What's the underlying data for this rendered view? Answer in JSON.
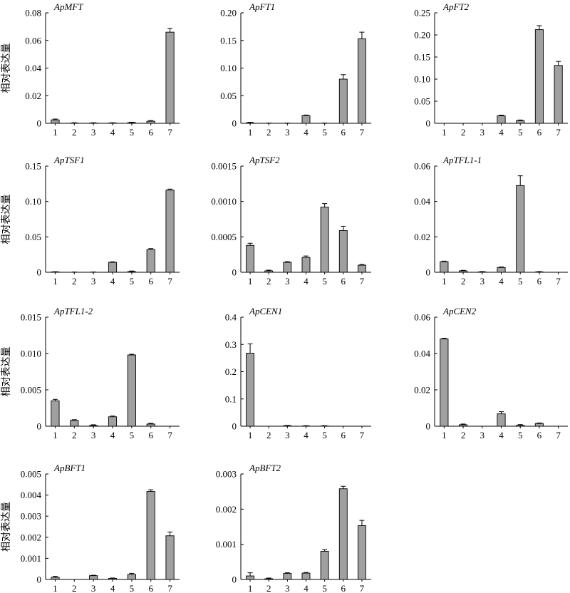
{
  "figure": {
    "ylabel": "相对表达量",
    "bar_color": "#a0a0a0",
    "axis_color": "#000000"
  },
  "chart_data": [
    {
      "type": "bar",
      "title": "ApMFT",
      "ylabel": "相对表达量",
      "categories": [
        "1",
        "2",
        "3",
        "4",
        "5",
        "6",
        "7"
      ],
      "ylim": [
        0,
        0.08
      ],
      "yticks": [
        "0",
        "0.02",
        "0.04",
        "0.06",
        "0.08"
      ],
      "values": [
        0.0025,
        0.0002,
        0.0002,
        0.0002,
        0.0005,
        0.0015,
        0.066
      ],
      "errors": [
        0.0006,
        0.0002,
        0.0002,
        0.0002,
        0.0003,
        0.0005,
        0.0028
      ]
    },
    {
      "type": "bar",
      "title": "ApFT1",
      "ylabel": "",
      "categories": [
        "1",
        "2",
        "3",
        "4",
        "5",
        "6",
        "7"
      ],
      "ylim": [
        0,
        0.2
      ],
      "yticks": [
        "0",
        "0.05",
        "0.10",
        "0.15",
        "0.20"
      ],
      "values": [
        0.001,
        0.0003,
        0.0003,
        0.014,
        0.0003,
        0.08,
        0.153
      ],
      "errors": [
        0.0008,
        0.0002,
        0.0002,
        0.001,
        0.0002,
        0.008,
        0.012
      ]
    },
    {
      "type": "bar",
      "title": "ApFT2",
      "ylabel": "",
      "categories": [
        "1",
        "2",
        "3",
        "4",
        "5",
        "6",
        "7"
      ],
      "ylim": [
        0,
        0.25
      ],
      "yticks": [
        "0",
        "0.05",
        "0.10",
        "0.15",
        "0.20",
        "0.25"
      ],
      "values": [
        0,
        0,
        0,
        0.017,
        0.006,
        0.212,
        0.131
      ],
      "errors": [
        0,
        0,
        0,
        0.0015,
        0.0015,
        0.009,
        0.009
      ]
    },
    {
      "type": "bar",
      "title": "ApTSF1",
      "ylabel": "相对表达量",
      "categories": [
        "1",
        "2",
        "3",
        "4",
        "5",
        "6",
        "7"
      ],
      "ylim": [
        0,
        0.15
      ],
      "yticks": [
        "0",
        "0.05",
        "0.10",
        "0.15"
      ],
      "values": [
        0.0005,
        0.0002,
        0.0002,
        0.014,
        0.001,
        0.032,
        0.116
      ],
      "errors": [
        0.0003,
        0.0002,
        0.0002,
        0.0008,
        0.0008,
        0.0015,
        0.0015
      ]
    },
    {
      "type": "bar",
      "title": "ApTSF2",
      "ylabel": "",
      "categories": [
        "1",
        "2",
        "3",
        "4",
        "5",
        "6",
        "7"
      ],
      "ylim": [
        0,
        0.0015
      ],
      "yticks": [
        "0",
        "0.0005",
        "0.0010",
        "0.0015"
      ],
      "values": [
        0.00038,
        2e-05,
        0.00014,
        0.00021,
        0.00092,
        0.00059,
        0.0001
      ],
      "errors": [
        3e-05,
        1e-05,
        1e-05,
        2e-05,
        5e-05,
        6e-05,
        1e-05
      ]
    },
    {
      "type": "bar",
      "title": "ApTFL1-1",
      "ylabel": "",
      "categories": [
        "1",
        "2",
        "3",
        "4",
        "5",
        "6",
        "7"
      ],
      "ylim": [
        0,
        0.06
      ],
      "yticks": [
        "0",
        "0.02",
        "0.04",
        "0.06"
      ],
      "values": [
        0.006,
        0.0008,
        0.0002,
        0.0027,
        0.049,
        0.0002,
        0
      ],
      "errors": [
        0.0003,
        0.0003,
        0.0002,
        0.0003,
        0.0055,
        0.0002,
        0
      ]
    },
    {
      "type": "bar",
      "title": "ApTFL1-2",
      "ylabel": "相对表达量",
      "categories": [
        "1",
        "2",
        "3",
        "4",
        "5",
        "6",
        "7"
      ],
      "ylim": [
        0,
        0.015
      ],
      "yticks": [
        "0",
        "0.005",
        "0.010",
        "0.015"
      ],
      "values": [
        0.0035,
        0.0008,
        0.0001,
        0.0013,
        0.0098,
        0.0003,
        0
      ],
      "errors": [
        0.0002,
        0.0001,
        0.0001,
        0.0001,
        0.0001,
        0.0001,
        0
      ]
    },
    {
      "type": "bar",
      "title": "ApCEN1",
      "ylabel": "",
      "categories": [
        "1",
        "2",
        "3",
        "4",
        "5",
        "6",
        "7"
      ],
      "ylim": [
        0,
        0.4
      ],
      "yticks": [
        "0",
        "0.1",
        "0.2",
        "0.3",
        "0.4"
      ],
      "values": [
        0.268,
        0,
        0.002,
        0.001,
        0.001,
        0,
        0
      ],
      "errors": [
        0.034,
        0,
        0.001,
        0.001,
        0.001,
        0,
        0
      ]
    },
    {
      "type": "bar",
      "title": "ApCEN2",
      "ylabel": "",
      "categories": [
        "1",
        "2",
        "3",
        "4",
        "5",
        "6",
        "7"
      ],
      "ylim": [
        0,
        0.06
      ],
      "yticks": [
        "0",
        "0.02",
        "0.04",
        "0.06"
      ],
      "values": [
        0.048,
        0.0008,
        0,
        0.0068,
        0.0005,
        0.0015,
        0
      ],
      "errors": [
        0.0004,
        0.0004,
        0,
        0.0012,
        0.0004,
        0.0003,
        0
      ]
    },
    {
      "type": "bar",
      "title": "ApBFT1",
      "ylabel": "相对表达量",
      "categories": [
        "1",
        "2",
        "3",
        "4",
        "5",
        "6",
        "7"
      ],
      "ylim": [
        0,
        0.005
      ],
      "yticks": [
        "0",
        "0.001",
        "0.002",
        "0.003",
        "0.004",
        "0.005"
      ],
      "values": [
        0.0001,
        0,
        0.00018,
        5e-05,
        0.00024,
        0.00417,
        0.00207
      ],
      "errors": [
        5e-05,
        0,
        2e-05,
        2e-05,
        5e-05,
        8e-05,
        0.00018
      ]
    },
    {
      "type": "bar",
      "title": "ApBFT2",
      "ylabel": "",
      "categories": [
        "1",
        "2",
        "3",
        "4",
        "5",
        "6",
        "7"
      ],
      "ylim": [
        0,
        0.003
      ],
      "yticks": [
        "0",
        "0.001",
        "0.002",
        "0.003"
      ],
      "values": [
        0.0001,
        2e-05,
        0.00017,
        0.00018,
        0.0008,
        0.00258,
        0.00153
      ],
      "errors": [
        9e-05,
        2e-05,
        2e-05,
        2e-05,
        5e-05,
        7e-05,
        0.00015
      ]
    }
  ]
}
